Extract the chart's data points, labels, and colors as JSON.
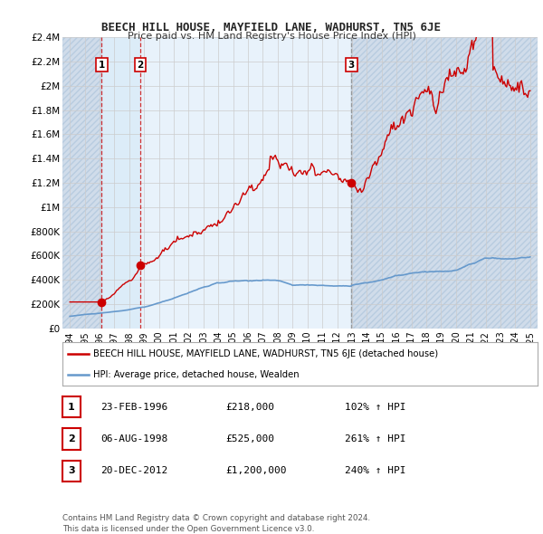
{
  "title": "BEECH HILL HOUSE, MAYFIELD LANE, WADHURST, TN5 6JE",
  "subtitle": "Price paid vs. HM Land Registry's House Price Index (HPI)",
  "sale_dates": [
    1996.15,
    1998.75,
    2012.97
  ],
  "sale_prices": [
    218000,
    525000,
    1200000
  ],
  "sale_labels": [
    "1",
    "2",
    "3"
  ],
  "ylim": [
    0,
    2400000
  ],
  "xlim": [
    1993.5,
    2025.5
  ],
  "yticks": [
    0,
    200000,
    400000,
    600000,
    800000,
    1000000,
    1200000,
    1400000,
    1600000,
    1800000,
    2000000,
    2200000,
    2400000
  ],
  "ytick_labels": [
    "£0",
    "£200K",
    "£400K",
    "£600K",
    "£800K",
    "£1M",
    "£1.2M",
    "£1.4M",
    "£1.6M",
    "£1.8M",
    "£2M",
    "£2.2M",
    "£2.4M"
  ],
  "xticks": [
    1994,
    1995,
    1996,
    1997,
    1998,
    1999,
    2000,
    2001,
    2002,
    2003,
    2004,
    2005,
    2006,
    2007,
    2008,
    2009,
    2010,
    2011,
    2012,
    2013,
    2014,
    2015,
    2016,
    2017,
    2018,
    2019,
    2020,
    2021,
    2022,
    2023,
    2024,
    2025
  ],
  "red_color": "#cc0000",
  "blue_color": "#6699cc",
  "grid_color": "#cccccc",
  "plot_bg_color": "#e8f2fb",
  "hatch_bg_color": "#dce9f5",
  "shade_color": "#d0e4f7",
  "legend_red_label": "BEECH HILL HOUSE, MAYFIELD LANE, WADHURST, TN5 6JE (detached house)",
  "legend_blue_label": "HPI: Average price, detached house, Wealden",
  "table_data": [
    {
      "num": "1",
      "date": "23-FEB-1996",
      "price": "£218,000",
      "change": "102% ↑ HPI"
    },
    {
      "num": "2",
      "date": "06-AUG-1998",
      "price": "£525,000",
      "change": "261% ↑ HPI"
    },
    {
      "num": "3",
      "date": "20-DEC-2012",
      "price": "£1,200,000",
      "change": "240% ↑ HPI"
    }
  ],
  "footnote": "Contains HM Land Registry data © Crown copyright and database right 2024.\nThis data is licensed under the Open Government Licence v3.0.",
  "bg_color": "#ffffff"
}
